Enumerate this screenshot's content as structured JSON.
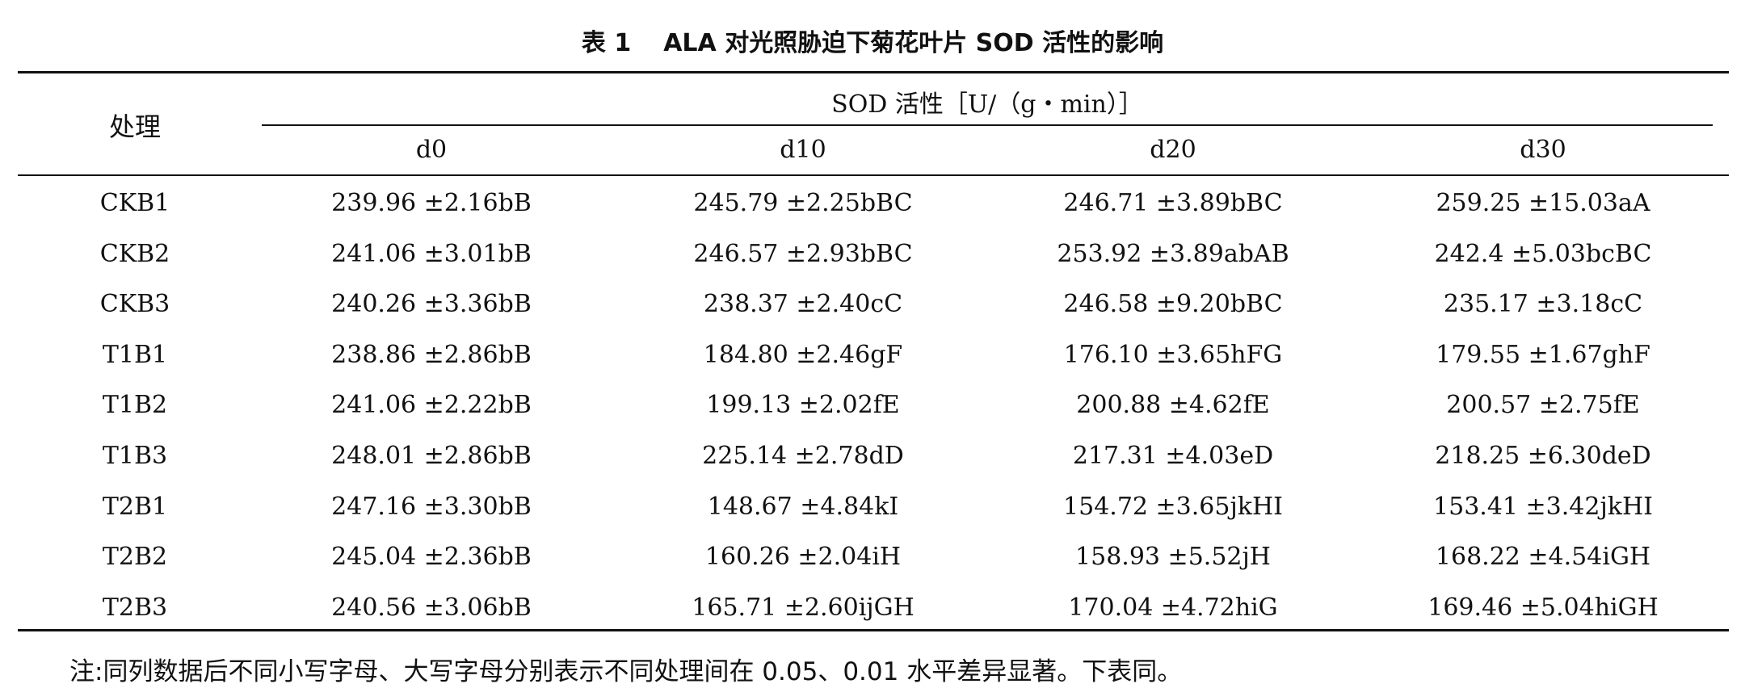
{
  "caption": {
    "number": "表 1",
    "title": "ALA 对光照胁迫下菊花叶片 SOD 活性的影响"
  },
  "chart_data": {
    "type": "table",
    "header": {
      "treatment": "处理",
      "group": "SOD 活性［U/（g・min）］",
      "days": [
        "d0",
        "d10",
        "d20",
        "d30"
      ]
    },
    "rows": [
      {
        "treatment": "CKB1",
        "values": [
          "239.96 ±2.16bB",
          "245.79 ±2.25bBC",
          "246.71 ±3.89bBC",
          "259.25 ±15.03aA"
        ]
      },
      {
        "treatment": "CKB2",
        "values": [
          "241.06 ±3.01bB",
          "246.57 ±2.93bBC",
          "253.92 ±3.89abAB",
          "242.4 ±5.03bcBC"
        ]
      },
      {
        "treatment": "CKB3",
        "values": [
          "240.26 ±3.36bB",
          "238.37 ±2.40cC",
          "246.58 ±9.20bBC",
          "235.17 ±3.18cC"
        ]
      },
      {
        "treatment": "T1B1",
        "values": [
          "238.86 ±2.86bB",
          "184.80 ±2.46gF",
          "176.10 ±3.65hFG",
          "179.55 ±1.67ghF"
        ]
      },
      {
        "treatment": "T1B2",
        "values": [
          "241.06 ±2.22bB",
          "199.13 ±2.02fE",
          "200.88 ±4.62fE",
          "200.57 ±2.75fE"
        ]
      },
      {
        "treatment": "T1B3",
        "values": [
          "248.01 ±2.86bB",
          "225.14 ±2.78dD",
          "217.31 ±4.03eD",
          "218.25 ±6.30deD"
        ]
      },
      {
        "treatment": "T2B1",
        "values": [
          "247.16 ±3.30bB",
          "148.67 ±4.84kI",
          "154.72 ±3.65jkHI",
          "153.41 ±3.42jkHI"
        ]
      },
      {
        "treatment": "T2B2",
        "values": [
          "245.04 ±2.36bB",
          "160.26 ±2.04iH",
          "158.93 ±5.52jH",
          "168.22 ±4.54iGH"
        ]
      },
      {
        "treatment": "T2B3",
        "values": [
          "240.56 ±3.06bB",
          "165.71 ±2.60ijGH",
          "170.04 ±4.72hiG",
          "169.46 ±5.04hiGH"
        ]
      }
    ]
  },
  "note": "注:同列数据后不同小写字母、大写字母分别表示不同处理间在 0.05、0.01 水平差异显著。下表同。"
}
